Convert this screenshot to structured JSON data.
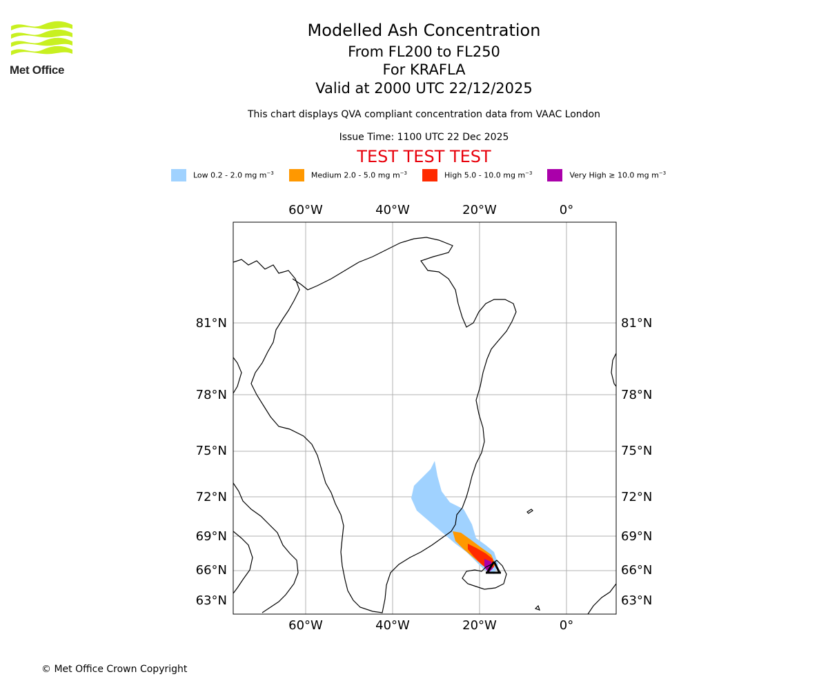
{
  "logo": {
    "name": "Met Office"
  },
  "title": {
    "line1": "Modelled Ash Concentration",
    "line2": "From FL200 to FL250",
    "line3": "For KRAFLA",
    "line4": "Valid at 2000 UTC 22/12/2025"
  },
  "subtitle": "This chart displays QVA compliant concentration data from VAAC London",
  "issue_time": "Issue Time: 1100 UTC 22 Dec 2025",
  "test_banner": "TEST TEST TEST",
  "legend": [
    {
      "label": "Low 0.2 - 2.0 mg m",
      "color": "#a0d2ff"
    },
    {
      "label": "Medium 2.0 - 5.0 mg m",
      "color": "#ff9800"
    },
    {
      "label": "High 5.0 - 10.0 mg m",
      "color": "#ff2a00"
    },
    {
      "label": "Very High ≥ 10.0 mg m",
      "color": "#aa00aa"
    }
  ],
  "legend_unit_exponent": "−3",
  "map": {
    "lon_ticks": [
      "60°W",
      "40°W",
      "20°W",
      "0°"
    ],
    "lat_ticks": [
      "81°N",
      "78°N",
      "75°N",
      "72°N",
      "69°N",
      "66°N",
      "63°N"
    ],
    "volcano": "KRAFLA"
  },
  "footer": "© Met Office Crown Copyright"
}
